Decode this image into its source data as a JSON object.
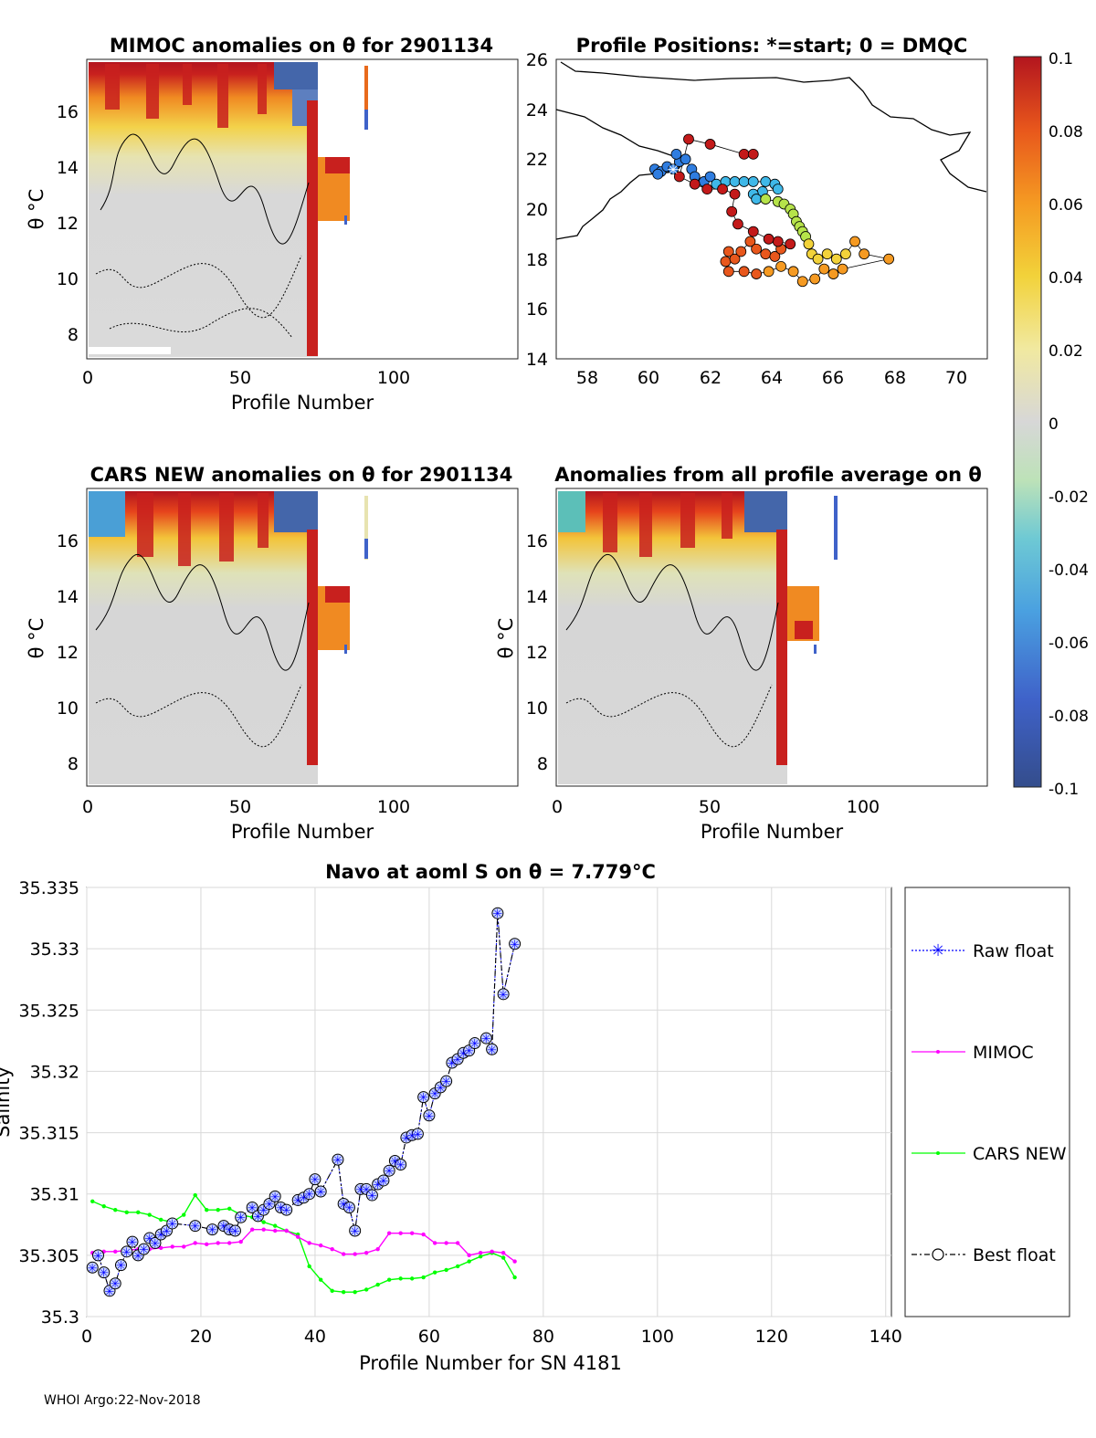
{
  "footer": "WHOI Argo:22-Nov-2018",
  "colors": {
    "raw_float": "#0000ff",
    "mimoc": "#ff00ff",
    "cars_new": "#00ff00",
    "best_float": "#000000",
    "marker_fill": "#c8d4ff"
  },
  "chart_data": [
    {
      "type": "heatmap",
      "id": "mimoc-anomalies",
      "title": "MIMOC anomalies on θ  for 2901134",
      "xlabel": "Profile Number",
      "ylabel": "θ °C",
      "xlim": [
        0,
        140
      ],
      "ylim": [
        7.2,
        17.8
      ],
      "xticks": [
        "0",
        "50",
        "100"
      ],
      "yticks": [
        "8",
        "10",
        "12",
        "14",
        "16"
      ],
      "description_values": "Temperature-level anomaly field; profiles 0-75 mostly near 0 below 13°C, strong positive (0.08-0.1) streaks above 14°C, negative (-0.1) at the very top for profiles 55-75; profiles 74-85 positive red block 12-14.5°C; profile 91 small column 15.5-17.5°C."
    },
    {
      "type": "scatter",
      "id": "profile-positions",
      "title": "Profile Positions: *=start; 0 = DMQC",
      "xlim": [
        57,
        71
      ],
      "ylim": [
        14,
        26
      ],
      "xticks": [
        "58",
        "60",
        "62",
        "64",
        "66",
        "68",
        "70"
      ],
      "yticks": [
        "14",
        "16",
        "18",
        "20",
        "22",
        "24",
        "26"
      ],
      "start_marker": {
        "lon": 60.8,
        "lat": 21.6
      },
      "track": [
        [
          60.2,
          21.6
        ],
        [
          60.4,
          21.5
        ],
        [
          60.6,
          21.7
        ],
        [
          60.3,
          21.4
        ],
        [
          60.8,
          21.6
        ],
        [
          61.0,
          21.9
        ],
        [
          60.9,
          22.2
        ],
        [
          61.2,
          22.0
        ],
        [
          61.4,
          21.6
        ],
        [
          61.5,
          21.3
        ],
        [
          61.8,
          21.1
        ],
        [
          62.0,
          21.3
        ],
        [
          62.2,
          21.0
        ],
        [
          62.5,
          21.1
        ],
        [
          62.8,
          21.1
        ],
        [
          63.1,
          21.1
        ],
        [
          63.4,
          21.1
        ],
        [
          63.8,
          21.1
        ],
        [
          64.1,
          21.0
        ],
        [
          64.2,
          20.8
        ],
        [
          63.7,
          20.7
        ],
        [
          63.4,
          20.6
        ],
        [
          63.5,
          20.4
        ],
        [
          63.8,
          20.4
        ],
        [
          64.2,
          20.3
        ],
        [
          64.4,
          20.2
        ],
        [
          64.6,
          20.0
        ],
        [
          64.7,
          19.8
        ],
        [
          64.8,
          19.5
        ],
        [
          64.9,
          19.3
        ],
        [
          65.0,
          19.1
        ],
        [
          65.1,
          18.9
        ],
        [
          65.2,
          18.6
        ],
        [
          65.3,
          18.2
        ],
        [
          65.5,
          18.0
        ],
        [
          65.8,
          18.2
        ],
        [
          66.1,
          18.0
        ],
        [
          66.4,
          18.2
        ],
        [
          66.7,
          18.7
        ],
        [
          67.0,
          18.2
        ],
        [
          67.8,
          18.0
        ],
        [
          66.3,
          17.6
        ],
        [
          66.0,
          17.4
        ],
        [
          65.7,
          17.6
        ],
        [
          65.4,
          17.2
        ],
        [
          65.0,
          17.1
        ],
        [
          64.7,
          17.5
        ],
        [
          64.3,
          17.7
        ],
        [
          63.9,
          17.5
        ],
        [
          63.5,
          17.4
        ],
        [
          63.1,
          17.5
        ],
        [
          62.6,
          17.5
        ],
        [
          62.5,
          17.9
        ],
        [
          62.6,
          18.3
        ],
        [
          62.8,
          18.0
        ],
        [
          63.0,
          18.3
        ],
        [
          63.3,
          18.7
        ],
        [
          63.5,
          18.4
        ],
        [
          63.8,
          18.2
        ],
        [
          64.1,
          18.1
        ],
        [
          64.3,
          18.4
        ],
        [
          64.6,
          18.6
        ],
        [
          64.2,
          18.7
        ],
        [
          63.9,
          18.8
        ],
        [
          63.4,
          19.1
        ],
        [
          62.9,
          19.4
        ],
        [
          62.7,
          19.9
        ],
        [
          62.8,
          20.6
        ],
        [
          62.4,
          20.8
        ],
        [
          61.9,
          20.8
        ],
        [
          61.5,
          21.0
        ],
        [
          61.0,
          21.3
        ],
        [
          61.3,
          22.8
        ],
        [
          62.0,
          22.6
        ],
        [
          63.1,
          22.2
        ],
        [
          63.4,
          22.2
        ]
      ]
    },
    {
      "type": "heatmap",
      "id": "cars-new-anomalies",
      "title": "CARS NEW anomalies on θ for 2901134",
      "xlabel": "Profile Number",
      "ylabel": "θ °C",
      "xlim": [
        0,
        140
      ],
      "ylim": [
        7.2,
        17.8
      ],
      "xticks": [
        "0",
        "50",
        "100"
      ],
      "yticks": [
        "8",
        "10",
        "12",
        "14",
        "16"
      ]
    },
    {
      "type": "heatmap",
      "id": "all-profile-anomalies",
      "title": "Anomalies from all profile average on θ",
      "xlabel": "Profile Number",
      "ylabel": "θ °C",
      "xlim": [
        0,
        140
      ],
      "ylim": [
        7.2,
        17.8
      ],
      "xticks": [
        "0",
        "50",
        "100"
      ],
      "yticks": [
        "8",
        "10",
        "12",
        "14",
        "16"
      ]
    },
    {
      "type": "colorbar",
      "id": "anomaly-colorbar",
      "range": [
        -0.1,
        0.1
      ],
      "ticks": [
        "0.1",
        "0.08",
        "0.06",
        "0.04",
        "0.02",
        "0",
        "-0.02",
        "-0.04",
        "-0.06",
        "-0.08",
        "-0.1"
      ]
    },
    {
      "type": "line",
      "id": "navo-salinity",
      "title": "Navo at aoml S on θ = 7.779°C",
      "xlabel": "Profile Number for SN 4181",
      "ylabel": "Salinity",
      "xlim": [
        0,
        141
      ],
      "ylim": [
        35.3,
        35.335
      ],
      "xticks": [
        "0",
        "20",
        "40",
        "60",
        "80",
        "100",
        "120",
        "140"
      ],
      "yticks": [
        "35.3",
        "35.305",
        "35.31",
        "35.315",
        "35.32",
        "35.325",
        "35.33",
        "35.335"
      ],
      "legend": [
        "Raw float",
        "MIMOC",
        "CARS NEW",
        "Best float"
      ],
      "series": [
        {
          "name": "Best float",
          "x": [
            1,
            2,
            3,
            4,
            5,
            6,
            7,
            8,
            9,
            10,
            11,
            12,
            13,
            14,
            15,
            19,
            22,
            24,
            25,
            26,
            27,
            29,
            30,
            31,
            32,
            33,
            34,
            35,
            37,
            38,
            39,
            40,
            41,
            44,
            45,
            46,
            47,
            48,
            49,
            50,
            51,
            52,
            53,
            54,
            55,
            56,
            57,
            58,
            59,
            60,
            61,
            62,
            63,
            64,
            65,
            66,
            67,
            68,
            70,
            71,
            72,
            73,
            75
          ],
          "values": [
            35.304,
            35.305,
            35.3036,
            35.3021,
            35.3027,
            35.3042,
            35.3053,
            35.3061,
            35.305,
            35.3055,
            35.3064,
            35.306,
            35.3067,
            35.307,
            35.3076,
            35.3074,
            35.3071,
            35.3074,
            35.3071,
            35.307,
            35.3081,
            35.3089,
            35.3082,
            35.3087,
            35.3092,
            35.3098,
            35.3089,
            35.3087,
            35.3095,
            35.3097,
            35.31,
            35.3112,
            35.3102,
            35.3128,
            35.3092,
            35.3089,
            35.307,
            35.3104,
            35.3104,
            35.3099,
            35.3108,
            35.3111,
            35.3119,
            35.3127,
            35.3124,
            35.3146,
            35.3148,
            35.3149,
            35.3179,
            35.3164,
            35.3182,
            35.3187,
            35.3192,
            35.3207,
            35.321,
            35.3215,
            35.3217,
            35.3223,
            35.3227,
            35.3218,
            35.3329,
            35.3263,
            35.3304
          ]
        },
        {
          "name": "MIMOC",
          "x": [
            1,
            3,
            5,
            7,
            9,
            11,
            13,
            15,
            17,
            19,
            21,
            23,
            25,
            27,
            29,
            31,
            33,
            35,
            37,
            39,
            41,
            43,
            45,
            47,
            49,
            51,
            53,
            55,
            57,
            59,
            61,
            63,
            65,
            67,
            69,
            71,
            73,
            75
          ],
          "values": [
            35.3052,
            35.3053,
            35.3053,
            35.3054,
            35.3055,
            35.3055,
            35.3056,
            35.3057,
            35.3057,
            35.306,
            35.3059,
            35.306,
            35.306,
            35.3061,
            35.3071,
            35.3071,
            35.307,
            35.307,
            35.3065,
            35.306,
            35.3058,
            35.3055,
            35.3051,
            35.3051,
            35.3052,
            35.3055,
            35.3068,
            35.3068,
            35.3068,
            35.3067,
            35.306,
            35.306,
            35.306,
            35.305,
            35.3052,
            35.3053,
            35.3052,
            35.3045
          ]
        },
        {
          "name": "CARS NEW",
          "x": [
            1,
            3,
            5,
            7,
            9,
            11,
            13,
            15,
            17,
            19,
            21,
            23,
            25,
            27,
            29,
            31,
            33,
            35,
            37,
            39,
            41,
            43,
            45,
            47,
            49,
            51,
            53,
            55,
            57,
            59,
            61,
            63,
            65,
            67,
            69,
            71,
            73,
            75
          ],
          "values": [
            35.3094,
            35.309,
            35.3087,
            35.3085,
            35.3085,
            35.3083,
            35.3079,
            35.3077,
            35.3083,
            35.3099,
            35.3087,
            35.3087,
            35.3088,
            35.3083,
            35.3081,
            35.3077,
            35.3074,
            35.307,
            35.3067,
            35.3041,
            35.303,
            35.3021,
            35.302,
            35.302,
            35.3022,
            35.3026,
            35.303,
            35.3031,
            35.3031,
            35.3032,
            35.3036,
            35.3038,
            35.3041,
            35.3045,
            35.3049,
            35.3052,
            35.3048,
            35.3032
          ]
        },
        {
          "name": "Raw float",
          "x": [
            1,
            2,
            3,
            4,
            5,
            6,
            7,
            8,
            9,
            10,
            11,
            12,
            13,
            14,
            15,
            19,
            22,
            24,
            25,
            26,
            27,
            29,
            30,
            31,
            32,
            33,
            34,
            35,
            37,
            38,
            39,
            40,
            41,
            44,
            45,
            46,
            47,
            48,
            49,
            50,
            51,
            52,
            53,
            54,
            55,
            56,
            57,
            58,
            59,
            60,
            61,
            62,
            63,
            64,
            65,
            66,
            67,
            68,
            70,
            71,
            72,
            73,
            75
          ],
          "values": [
            35.304,
            35.305,
            35.3036,
            35.3021,
            35.3027,
            35.3042,
            35.3053,
            35.3061,
            35.305,
            35.3055,
            35.3064,
            35.306,
            35.3067,
            35.307,
            35.3076,
            35.3074,
            35.3071,
            35.3074,
            35.3071,
            35.307,
            35.3081,
            35.3089,
            35.3082,
            35.3087,
            35.3092,
            35.3098,
            35.3089,
            35.3087,
            35.3095,
            35.3097,
            35.31,
            35.3112,
            35.3102,
            35.3128,
            35.3092,
            35.3089,
            35.307,
            35.3104,
            35.3104,
            35.3099,
            35.3108,
            35.3111,
            35.3119,
            35.3127,
            35.3124,
            35.3146,
            35.3148,
            35.3149,
            35.3179,
            35.3164,
            35.3182,
            35.3187,
            35.3192,
            35.3207,
            35.321,
            35.3215,
            35.3217,
            35.3223,
            35.3227,
            35.3218,
            35.3329,
            35.3263,
            35.3304
          ]
        }
      ]
    }
  ]
}
